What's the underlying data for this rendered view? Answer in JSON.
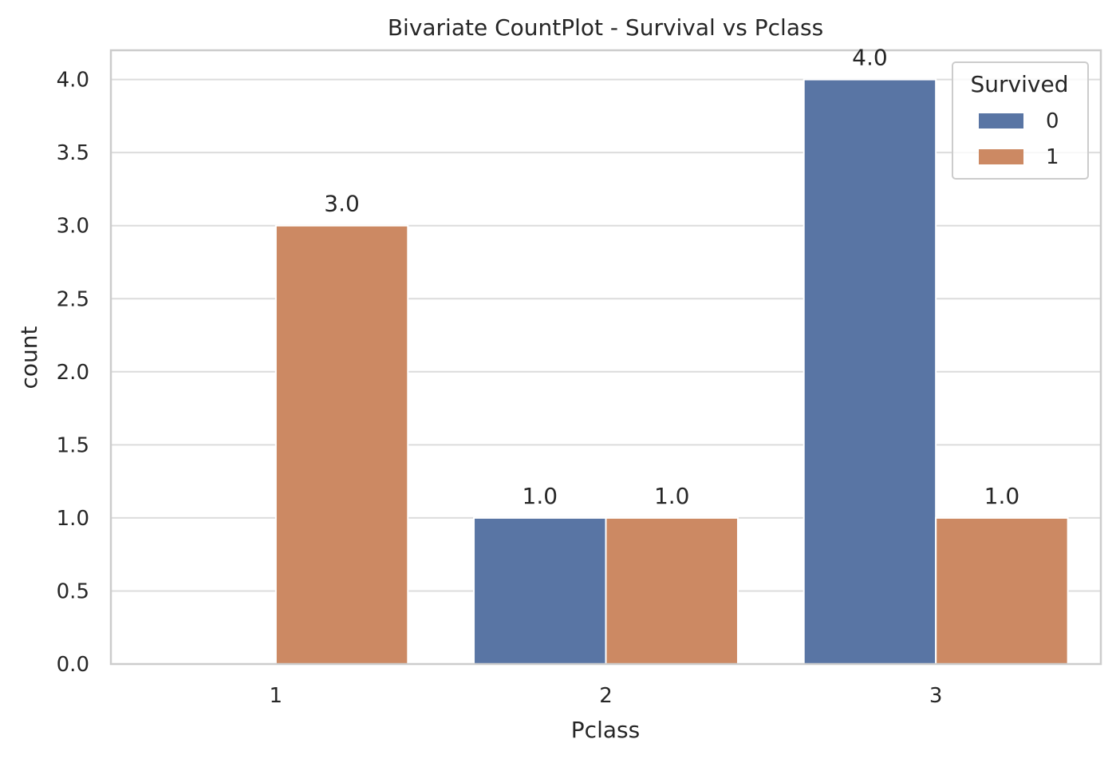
{
  "chart_data": {
    "type": "bar",
    "title": "Bivariate CountPlot - Survival vs Pclass",
    "xlabel": "Pclass",
    "ylabel": "count",
    "categories": [
      "1",
      "2",
      "3"
    ],
    "series": [
      {
        "name": "0",
        "color": "#5975a4",
        "values": [
          0,
          1,
          4
        ]
      },
      {
        "name": "1",
        "color": "#cc8963",
        "values": [
          3,
          1,
          1
        ]
      }
    ],
    "ylim": [
      0,
      4.2
    ],
    "yticks": [
      "0.0",
      "0.5",
      "1.0",
      "1.5",
      "2.0",
      "2.5",
      "3.0",
      "3.5",
      "4.0"
    ],
    "data_labels": [
      [
        "",
        "1.0",
        "4.0"
      ],
      [
        "3.0",
        "1.0",
        "1.0"
      ]
    ],
    "grid": true,
    "legend": {
      "title": "Survived",
      "position": "top-right",
      "entries": [
        "0",
        "1"
      ]
    },
    "colors": {
      "grid": "#dcdcdc",
      "spine": "#cccccc",
      "text": "#262626"
    }
  }
}
